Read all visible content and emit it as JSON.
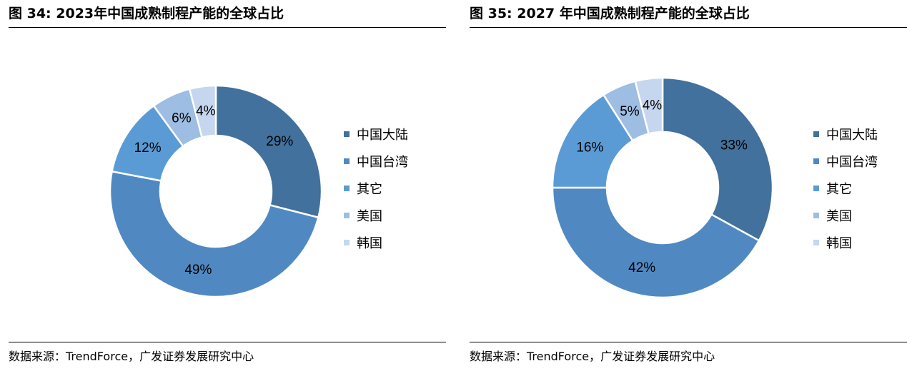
{
  "source_label": "数据来源：TrendForce，广发证券发展研究中心",
  "chart_data": [
    {
      "type": "pie",
      "donut": true,
      "title": "图 34: 2023年中国成熟制程产能的全球占比",
      "categories": [
        "中国大陆",
        "中国台湾",
        "其它",
        "美国",
        "韩国"
      ],
      "values": [
        29,
        49,
        12,
        6,
        4
      ],
      "value_labels": [
        "29%",
        "49%",
        "12%",
        "6%",
        "4%"
      ],
      "colors": [
        "#41719C",
        "#5089C2",
        "#5B9BD5",
        "#9DBDE3",
        "#C5D6EE"
      ],
      "legend_position": "right"
    },
    {
      "type": "pie",
      "donut": true,
      "title": "图 35: 2027 年中国成熟制程产能的全球占比",
      "categories": [
        "中国大陆",
        "中国台湾",
        "其它",
        "美国",
        "韩国"
      ],
      "values": [
        33,
        42,
        16,
        5,
        4
      ],
      "value_labels": [
        "33%",
        "42%",
        "16%",
        "5%",
        "4%"
      ],
      "colors": [
        "#41719C",
        "#5089C2",
        "#5B9BD5",
        "#9DBDE3",
        "#C5D6EE"
      ],
      "legend_position": "right"
    }
  ]
}
